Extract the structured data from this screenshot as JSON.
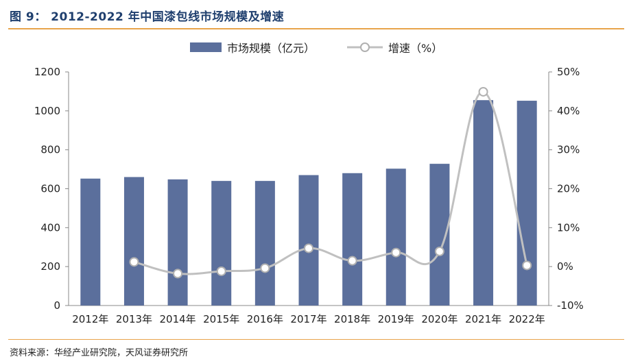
{
  "figure": {
    "title": "图 9： 2012-2022 年中国漆包线市场规模及增速",
    "source": "资料来源：华经产业研究院，天风证券研究所"
  },
  "colors": {
    "bar": "#5b6f9c",
    "line": "#c0c0c0",
    "title": "#1f3f6e",
    "rule": "#e8a34a"
  },
  "chart_data": {
    "type": "bar",
    "categories": [
      "2012年",
      "2013年",
      "2014年",
      "2015年",
      "2016年",
      "2017年",
      "2018年",
      "2019年",
      "2020年",
      "2021年",
      "2022年"
    ],
    "series": [
      {
        "name": "市场规模（亿元）",
        "type": "bar",
        "axis": "left",
        "values": [
          652,
          660,
          648,
          640,
          640,
          670,
          680,
          703,
          728,
          1055,
          1052
        ]
      },
      {
        "name": "增速（%）",
        "type": "line",
        "axis": "right",
        "values": [
          null,
          1.2,
          -1.8,
          -1.2,
          -0.4,
          4.7,
          1.5,
          3.6,
          3.9,
          44.9,
          0.3
        ]
      }
    ],
    "ylim_left": [
      0,
      1200
    ],
    "yticks_left": [
      "0",
      "200",
      "400",
      "600",
      "800",
      "1000",
      "1200"
    ],
    "ylim_right": [
      -10,
      50
    ],
    "yticks_right": [
      "-10%",
      "0%",
      "10%",
      "20%",
      "30%",
      "40%",
      "50%"
    ],
    "legend_position": "top",
    "grid": false
  }
}
